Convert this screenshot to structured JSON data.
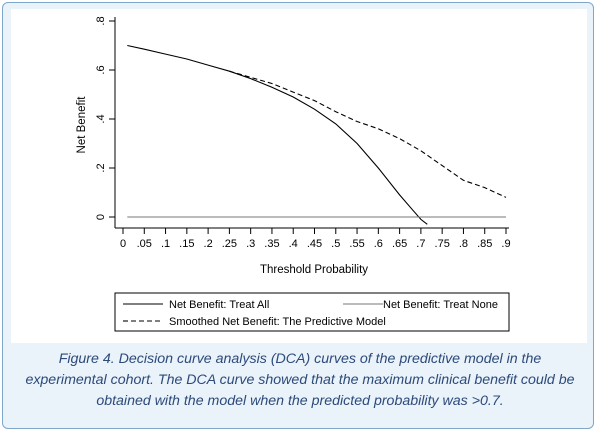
{
  "chart_data": {
    "type": "line",
    "xlabel": "Threshold Probability",
    "ylabel": "Net Benefit",
    "xlim": [
      0,
      0.9
    ],
    "ylim": [
      -0.03,
      0.8
    ],
    "x_ticks": [
      0,
      0.05,
      0.1,
      0.15,
      0.2,
      0.25,
      0.3,
      0.35,
      0.4,
      0.45,
      0.5,
      0.55,
      0.6,
      0.65,
      0.7,
      0.75,
      0.8,
      0.85,
      0.9
    ],
    "x_tick_labels": [
      "0",
      ".05",
      ".1",
      ".15",
      ".2",
      ".25",
      ".3",
      ".35",
      ".4",
      ".45",
      ".5",
      ".55",
      ".6",
      ".65",
      ".7",
      ".75",
      ".8",
      ".85",
      ".9"
    ],
    "y_ticks": [
      0,
      0.2,
      0.4,
      0.6,
      0.8
    ],
    "y_tick_labels": [
      "0",
      ".2",
      ".4",
      ".6",
      ".8"
    ],
    "grid": false,
    "legend_position": "bottom",
    "series": [
      {
        "name": "Net Benefit: Treat All",
        "style": "solid",
        "color": "#000000",
        "x": [
          0.01,
          0.05,
          0.1,
          0.15,
          0.2,
          0.25,
          0.3,
          0.35,
          0.4,
          0.45,
          0.5,
          0.55,
          0.6,
          0.65,
          0.68,
          0.7,
          0.715
        ],
        "y": [
          0.7,
          0.685,
          0.665,
          0.645,
          0.62,
          0.595,
          0.565,
          0.53,
          0.49,
          0.44,
          0.38,
          0.3,
          0.2,
          0.09,
          0.03,
          -0.01,
          -0.03
        ]
      },
      {
        "name": "Net Benefit: Treat None",
        "style": "solid",
        "color": "#777777",
        "x": [
          0.01,
          0.9
        ],
        "y": [
          0,
          0
        ]
      },
      {
        "name": "Smoothed Net Benefit: The Predictive Model",
        "style": "dashed",
        "color": "#000000",
        "x": [
          0.25,
          0.3,
          0.35,
          0.4,
          0.45,
          0.5,
          0.55,
          0.6,
          0.65,
          0.7,
          0.75,
          0.8,
          0.85,
          0.9
        ],
        "y": [
          0.595,
          0.57,
          0.545,
          0.51,
          0.475,
          0.43,
          0.39,
          0.36,
          0.32,
          0.27,
          0.21,
          0.15,
          0.12,
          0.08
        ]
      }
    ]
  },
  "caption": "Figure 4. Decision curve analysis (DCA) curves of the predictive model in the experimental cohort. The DCA curve showed that the maximum clinical benefit could be obtained with the model when the predicted probability was >0.7."
}
